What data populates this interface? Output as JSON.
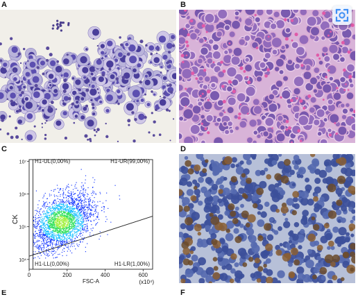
{
  "panels": {
    "a": "A",
    "b": "B",
    "c": "C",
    "d": "D",
    "e": "E",
    "f": "F"
  },
  "icons": {
    "scan_button": "scan-icon"
  },
  "chart_data": {
    "type": "scatter",
    "title": "",
    "xlabel": "FSC-A",
    "ylabel": "CK",
    "x_scale_note": "(x10⁴)",
    "xlim": [
      0,
      650
    ],
    "ylim_log10": [
      3.7,
      7.05
    ],
    "x_ticks": [
      {
        "value": 0,
        "label": "0"
      },
      {
        "value": 200,
        "label": "200"
      },
      {
        "value": 400,
        "label": "400"
      },
      {
        "value": 600,
        "label": "600"
      }
    ],
    "y_ticks": [
      {
        "value": 4,
        "label": "10⁴"
      },
      {
        "value": 5,
        "label": "10⁵"
      },
      {
        "value": 6,
        "label": "10⁶"
      },
      {
        "value": 7,
        "label": "10⁷"
      }
    ],
    "quadrant_labels": {
      "ul": "H1-UL(0,00%)",
      "ur": "H1-UR(99,00%)",
      "ll": "H1-LL(0,00%)",
      "lr": "H1-LR(1,00%)"
    },
    "gate_vertical_x": 20,
    "gate_line": [
      [
        0,
        4.1
      ],
      [
        650,
        5.32
      ]
    ],
    "population_center": [
      170,
      5.15
    ],
    "grid": false,
    "colors": {
      "sparse": "#1a3cff",
      "medium": "#19c0ff",
      "dense": "#2fe05a",
      "core": "#9ff03a"
    }
  }
}
